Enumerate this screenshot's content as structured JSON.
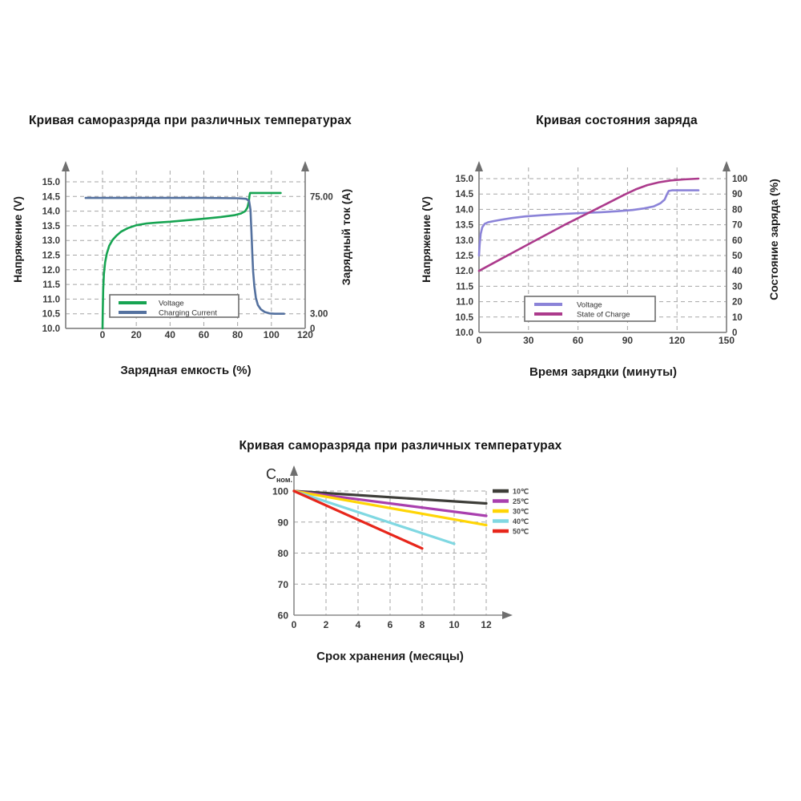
{
  "chart_data": [
    {
      "type": "line",
      "title": "Кривая саморазряда при различных температурах",
      "xlabel": "Зарядная емкость (%)",
      "ylabel_left": "Напряжение (V)",
      "ylabel_right": "Зарядный ток (A)",
      "xlim": [
        -22,
        120
      ],
      "xticks": [
        0,
        20,
        40,
        60,
        80,
        100,
        120
      ],
      "ylim_left": [
        10.0,
        15.0
      ],
      "yticks_left": [
        10.0,
        10.5,
        11.0,
        11.5,
        12.0,
        12.5,
        13.0,
        13.5,
        14.0,
        14.5,
        15.0
      ],
      "yticks_right": [
        {
          "label": "75.00",
          "at_v": 14.5
        },
        {
          "label": "3.00",
          "at_v": 10.5
        },
        {
          "label": "0",
          "at_v": 10.0
        }
      ],
      "grid": "dashed",
      "legend": {
        "box": true,
        "position": "inside-bottom-left",
        "entries": [
          {
            "label": "Voltage",
            "color": "#17a452"
          },
          {
            "label": "Charging Current",
            "color": "#54719f"
          }
        ]
      },
      "series": [
        {
          "name": "Voltage",
          "units": "V",
          "yscale": "left",
          "color": "#17a452",
          "points": [
            [
              0,
              10.0
            ],
            [
              0.15,
              10.6
            ],
            [
              0.4,
              11.3
            ],
            [
              0.8,
              11.85
            ],
            [
              1.5,
              12.25
            ],
            [
              2.5,
              12.55
            ],
            [
              4,
              12.82
            ],
            [
              6,
              13.02
            ],
            [
              8,
              13.15
            ],
            [
              11,
              13.3
            ],
            [
              15,
              13.42
            ],
            [
              20,
              13.52
            ],
            [
              26,
              13.58
            ],
            [
              32,
              13.61
            ],
            [
              40,
              13.64
            ],
            [
              50,
              13.69
            ],
            [
              60,
              13.74
            ],
            [
              70,
              13.8
            ],
            [
              78,
              13.86
            ],
            [
              82,
              13.92
            ],
            [
              84.5,
              14.0
            ],
            [
              85.8,
              14.12
            ],
            [
              86.6,
              14.32
            ],
            [
              87.1,
              14.55
            ],
            [
              87.4,
              14.62
            ],
            [
              105.5,
              14.62
            ]
          ]
        },
        {
          "name": "Charging Current",
          "units": "A (plotted on voltage scale; 75.00 A ≈ 14.5 V level, 3.00 A ≈ 10.5 V level)",
          "yscale": "left",
          "color": "#54719f",
          "points": [
            [
              -10,
              14.45
            ],
            [
              60,
              14.45
            ],
            [
              80,
              14.44
            ],
            [
              85,
              14.42
            ],
            [
              86.8,
              14.35
            ],
            [
              87.6,
              14.05
            ],
            [
              88.2,
              13.3
            ],
            [
              88.7,
              12.55
            ],
            [
              89.2,
              11.95
            ],
            [
              89.9,
              11.45
            ],
            [
              90.8,
              11.05
            ],
            [
              92,
              10.8
            ],
            [
              93.8,
              10.65
            ],
            [
              96,
              10.56
            ],
            [
              99,
              10.51
            ],
            [
              102,
              10.5
            ],
            [
              107.5,
              10.5
            ]
          ]
        }
      ]
    },
    {
      "type": "line",
      "title": "Кривая состояния заряда",
      "xlabel": "Время зарядки (минуты)",
      "ylabel_left": "Напряжение (V)",
      "ylabel_right": "Состояние заряда (%)",
      "xlim": [
        0,
        150
      ],
      "xticks": [
        0,
        30,
        60,
        90,
        120,
        150
      ],
      "ylim_left": [
        10.0,
        15.0
      ],
      "yticks_left": [
        10.0,
        10.5,
        11.0,
        11.5,
        12.0,
        12.5,
        13.0,
        13.5,
        14.0,
        14.5,
        15.0
      ],
      "right_axis": {
        "min": 0,
        "max": 100,
        "maps_to_v": [
          10.0,
          15.0
        ]
      },
      "yticks_right": [
        {
          "label": "100",
          "at_v": 15.0
        },
        {
          "label": "90",
          "at_v": 14.5
        },
        {
          "label": "80",
          "at_v": 14.0
        },
        {
          "label": "70",
          "at_v": 13.5
        },
        {
          "label": "60",
          "at_v": 13.0
        },
        {
          "label": "50",
          "at_v": 12.5
        },
        {
          "label": "40",
          "at_v": 12.0
        },
        {
          "label": "30",
          "at_v": 11.5
        },
        {
          "label": "20",
          "at_v": 11.0
        },
        {
          "label": "10",
          "at_v": 10.5
        },
        {
          "label": "0",
          "at_v": 10.0
        }
      ],
      "grid": "dashed",
      "legend": {
        "box": true,
        "position": "inside-bottom-left",
        "entries": [
          {
            "label": "Voltage",
            "color": "#8b83d8"
          },
          {
            "label": "State of Charge",
            "color": "#ac3a8c"
          }
        ]
      },
      "series": [
        {
          "name": "Voltage",
          "units": "V",
          "yscale": "left",
          "color": "#8b83d8",
          "points": [
            [
              0,
              12.5
            ],
            [
              0.4,
              12.85
            ],
            [
              1,
              13.2
            ],
            [
              2,
              13.42
            ],
            [
              3.5,
              13.53
            ],
            [
              5.5,
              13.58
            ],
            [
              9,
              13.62
            ],
            [
              14,
              13.67
            ],
            [
              20,
              13.72
            ],
            [
              28,
              13.77
            ],
            [
              38,
              13.81
            ],
            [
              50,
              13.85
            ],
            [
              62,
              13.88
            ],
            [
              74,
              13.91
            ],
            [
              84,
              13.94
            ],
            [
              93,
              13.98
            ],
            [
              100,
              14.03
            ],
            [
              106,
              14.1
            ],
            [
              110,
              14.2
            ],
            [
              112.5,
              14.32
            ],
            [
              114,
              14.5
            ],
            [
              115,
              14.6
            ],
            [
              117,
              14.62
            ],
            [
              133,
              14.62
            ]
          ]
        },
        {
          "name": "State of Charge",
          "units": "%",
          "yscale": "right",
          "color": "#ac3a8c",
          "points": [
            [
              0,
              40
            ],
            [
              12,
              47
            ],
            [
              25,
              54.5
            ],
            [
              38,
              62
            ],
            [
              52,
              70
            ],
            [
              65,
              77
            ],
            [
              78,
              84
            ],
            [
              88,
              89.5
            ],
            [
              95,
              93
            ],
            [
              102,
              95.8
            ],
            [
              109,
              97.6
            ],
            [
              116,
              98.8
            ],
            [
              124,
              99.5
            ],
            [
              133,
              100
            ]
          ]
        }
      ]
    },
    {
      "type": "line",
      "title": "Кривая саморазряда при различных температурах",
      "xlabel": "Срок хранения (месяцы)",
      "ylabel_main": "C",
      "ylabel_sub": "ном.",
      "xlim": [
        0,
        13
      ],
      "xticks": [
        0,
        2,
        4,
        6,
        8,
        10,
        12
      ],
      "ylim": [
        60,
        103
      ],
      "yticks": [
        60,
        70,
        80,
        90,
        100
      ],
      "grid": "dashed",
      "legend": {
        "box": false,
        "position": "top-right",
        "entries": [
          {
            "label": "10℃",
            "color": "#3d3d38"
          },
          {
            "label": "25℃",
            "color": "#a93fae"
          },
          {
            "label": "30℃",
            "color": "#ffd505"
          },
          {
            "label": "40℃",
            "color": "#80d8e2"
          },
          {
            "label": "50℃",
            "color": "#e7261b"
          }
        ]
      },
      "series": [
        {
          "name": "10℃",
          "units": "% of nominal capacity",
          "color": "#3d3d38",
          "points": [
            [
              0,
              100
            ],
            [
              12,
              96
            ]
          ]
        },
        {
          "name": "25℃",
          "units": "% of nominal capacity",
          "color": "#a93fae",
          "points": [
            [
              0,
              100
            ],
            [
              12,
              92
            ]
          ]
        },
        {
          "name": "30℃",
          "units": "% of nominal capacity",
          "color": "#ffd505",
          "points": [
            [
              0,
              100
            ],
            [
              12,
              89
            ]
          ]
        },
        {
          "name": "40℃",
          "units": "% of nominal capacity",
          "color": "#80d8e2",
          "points": [
            [
              0,
              100
            ],
            [
              10,
              83
            ]
          ]
        },
        {
          "name": "50℃",
          "units": "% of nominal capacity",
          "color": "#e7261b",
          "points": [
            [
              0,
              100
            ],
            [
              8,
              81.5
            ]
          ]
        }
      ]
    }
  ],
  "style_colors": {
    "axis": "#8a8a8a",
    "grid": "#a5a5a5",
    "tick_text": "#3a3a3a",
    "arrow": "#6f6f6f",
    "legend_border": "#6e6e6e"
  }
}
